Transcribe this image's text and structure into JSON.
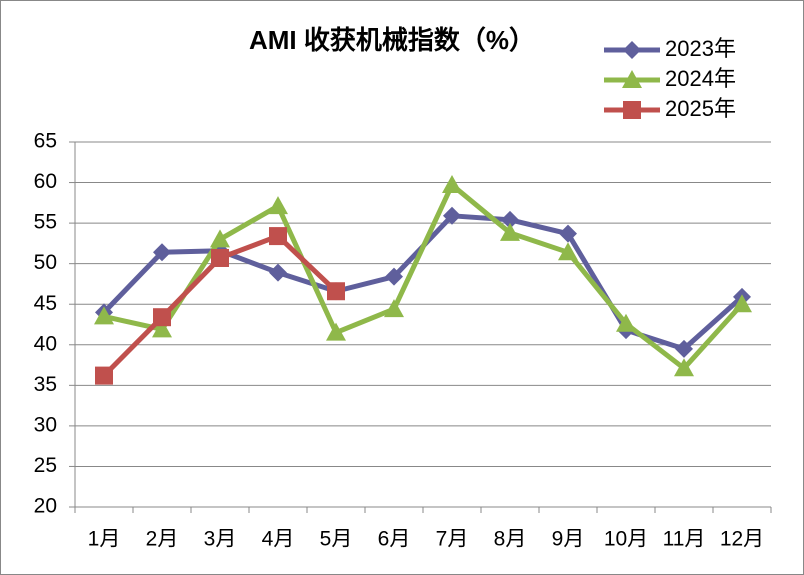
{
  "chart_data": {
    "type": "line",
    "title": "AMI 收获机械指数（%）",
    "categories": [
      "1月",
      "2月",
      "3月",
      "4月",
      "5月",
      "6月",
      "7月",
      "8月",
      "9月",
      "10月",
      "11月",
      "12月"
    ],
    "series": [
      {
        "name": "2023年",
        "color": "#5f5f9c",
        "marker": "diamond",
        "values": [
          44.0,
          51.4,
          51.6,
          48.9,
          46.6,
          48.4,
          55.9,
          55.4,
          53.7,
          41.8,
          39.5,
          45.9
        ]
      },
      {
        "name": "2024年",
        "color": "#8fb84a",
        "marker": "triangle",
        "values": [
          43.5,
          41.9,
          53.0,
          57.1,
          41.5,
          44.4,
          59.7,
          53.8,
          51.4,
          42.6,
          37.1,
          45.0
        ]
      },
      {
        "name": "2025年",
        "color": "#c0504d",
        "marker": "square",
        "values": [
          36.2,
          43.4,
          50.7,
          53.4,
          46.6,
          null,
          null,
          null,
          null,
          null,
          null,
          null
        ]
      }
    ],
    "ylim": [
      20,
      65
    ],
    "yticks": [
      20,
      25,
      30,
      35,
      40,
      45,
      50,
      55,
      60,
      65
    ],
    "grid": true,
    "legend": "top-right"
  }
}
